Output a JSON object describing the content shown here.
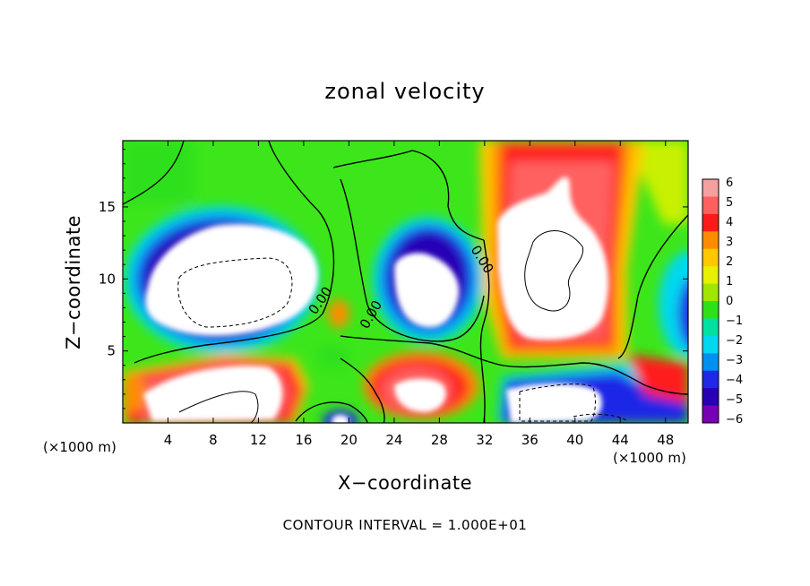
{
  "chart_data": {
    "type": "heatmap",
    "title": "zonal velocity",
    "xlabel": "X−coordinate",
    "ylabel": "Z−coordinate",
    "x_unit_left": "(×1000 m)",
    "x_unit_right": "(×1000 m)",
    "note": "CONTOUR INTERVAL = 1.000E+01",
    "xlim": [
      0,
      50
    ],
    "ylim": [
      0,
      19.6
    ],
    "x_ticks": [
      "4",
      "8",
      "12",
      "16",
      "20",
      "24",
      "28",
      "32",
      "36",
      "40",
      "44",
      "48"
    ],
    "y_ticks": [
      "5",
      "10",
      "15"
    ],
    "x_tick_values": [
      4,
      8,
      12,
      16,
      20,
      24,
      28,
      32,
      36,
      40,
      44,
      48
    ],
    "y_tick_values": [
      5,
      10,
      15
    ],
    "colorbar": {
      "range": [
        -6,
        6
      ],
      "labels": [
        "6",
        "5",
        "4",
        "3",
        "2",
        "1",
        "0",
        "−1",
        "−2",
        "−3",
        "−4",
        "−5",
        "−6"
      ],
      "colors": [
        "#f5a0a0",
        "#ff6060",
        "#ff1a1a",
        "#ff8c00",
        "#ffc800",
        "#e6f000",
        "#a0e600",
        "#2ee01a",
        "#00e0a0",
        "#00d8f0",
        "#0090f0",
        "#1e28e6",
        "#2800b4",
        "#7800b4"
      ]
    },
    "contour_labels": [
      "0.00",
      "0.00",
      "0.00"
    ],
    "features": [
      {
        "kind": "jet",
        "sign": "negative",
        "center": [
          10,
          9.5
        ],
        "note": "large negative core, saturated below -6"
      },
      {
        "kind": "jet",
        "sign": "negative",
        "center": [
          27,
          9.8
        ],
        "note": "negative core, saturated below -6"
      },
      {
        "kind": "jet",
        "sign": "positive",
        "center": [
          38,
          11.5
        ],
        "note": "strong positive core, saturated above 6"
      },
      {
        "kind": "jet",
        "sign": "positive",
        "center": [
          9,
          2.0
        ],
        "note": "near-surface positive region"
      },
      {
        "kind": "jet",
        "sign": "positive",
        "center": [
          26,
          2.2
        ],
        "note": "near-surface positive region"
      },
      {
        "kind": "jet",
        "sign": "negative",
        "center": [
          39,
          1.5
        ],
        "note": "near-surface negative region"
      }
    ]
  }
}
